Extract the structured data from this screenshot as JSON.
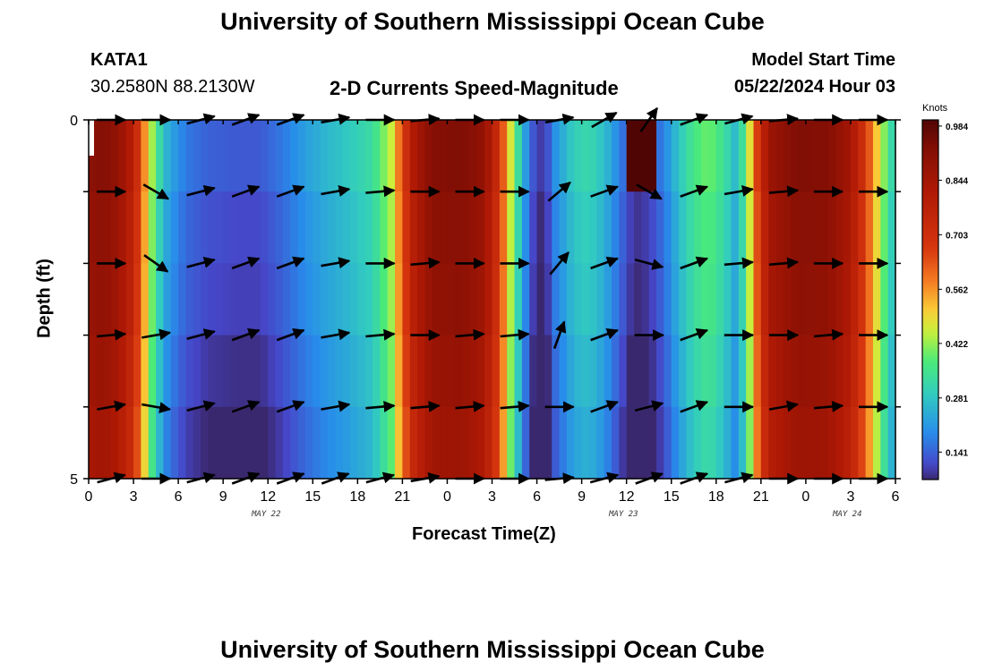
{
  "header": {
    "title": "University of Southern Mississippi Ocean Cube",
    "station_id": "KATA1",
    "coordinates": "30.2580N  88.2130W",
    "product": "2-D Currents Speed-Magnitude",
    "model_start_label": "Model Start Time",
    "model_start_value": "05/22/2024 Hour 03"
  },
  "footer": {
    "title": "University of Southern Mississippi Ocean Cube"
  },
  "chart_data": {
    "type": "heatmap",
    "title": "2-D Currents Speed-Magnitude",
    "xlabel": "Forecast Time(Z)",
    "ylabel": "Depth (ft)",
    "x_start_hour": 0,
    "x_end_hour": 54,
    "x_ticks": [
      0,
      3,
      6,
      9,
      12,
      15,
      18,
      21,
      24,
      27,
      30,
      33,
      36,
      39,
      42,
      45,
      48,
      51,
      54
    ],
    "x_tick_labels": [
      "0",
      "3",
      "6",
      "9",
      "12",
      "15",
      "18",
      "21",
      "0",
      "3",
      "6",
      "9",
      "12",
      "15",
      "18",
      "21",
      "0",
      "3",
      "6"
    ],
    "day_labels": [
      {
        "hour": 12,
        "label": "MAY 22"
      },
      {
        "hour": 36,
        "label": "MAY 23"
      },
      {
        "hour": 51,
        "label": "MAY 24"
      }
    ],
    "y_ticks": [
      0,
      1,
      2,
      3,
      4,
      5
    ],
    "y_tick_labels": [
      "0",
      "",
      "",
      "",
      "",
      "5"
    ],
    "ylim": [
      0,
      5
    ],
    "depth_bins": 5,
    "colorbar": {
      "label": "Knots",
      "min": 0.07,
      "max": 1.0,
      "ticks": [
        0.984,
        0.844,
        0.703,
        0.562,
        0.422,
        0.281,
        0.141
      ],
      "tick_labels": [
        "0.984",
        "0.844",
        "0.703",
        "0.562",
        "0.422",
        "0.281",
        "0.141"
      ]
    },
    "speed_profile": [
      {
        "h": 0,
        "v": 0.9
      },
      {
        "h": 1,
        "v": 0.92
      },
      {
        "h": 2,
        "v": 0.88
      },
      {
        "h": 3,
        "v": 0.78
      },
      {
        "h": 3.8,
        "v": 0.55
      },
      {
        "h": 4.5,
        "v": 0.36
      },
      {
        "h": 5.3,
        "v": 0.24
      },
      {
        "h": 6.5,
        "v": 0.17
      },
      {
        "h": 8,
        "v": 0.14
      },
      {
        "h": 10,
        "v": 0.13
      },
      {
        "h": 11.5,
        "v": 0.13
      },
      {
        "h": 13,
        "v": 0.17
      },
      {
        "h": 14.5,
        "v": 0.22
      },
      {
        "h": 16,
        "v": 0.26
      },
      {
        "h": 17.5,
        "v": 0.29
      },
      {
        "h": 19,
        "v": 0.33
      },
      {
        "h": 20.3,
        "v": 0.46
      },
      {
        "h": 21,
        "v": 0.66
      },
      {
        "h": 21.8,
        "v": 0.82
      },
      {
        "h": 23,
        "v": 0.92
      },
      {
        "h": 25,
        "v": 0.93
      },
      {
        "h": 26.5,
        "v": 0.88
      },
      {
        "h": 27.5,
        "v": 0.7
      },
      {
        "h": 28.2,
        "v": 0.48
      },
      {
        "h": 28.8,
        "v": 0.32
      },
      {
        "h": 29.4,
        "v": 0.18
      },
      {
        "h": 30,
        "v": 0.09
      },
      {
        "h": 30.6,
        "v": 0.1
      },
      {
        "h": 31.2,
        "v": 0.2
      },
      {
        "h": 32.5,
        "v": 0.3
      },
      {
        "h": 33.5,
        "v": 0.32
      },
      {
        "h": 34.5,
        "v": 0.27
      },
      {
        "h": 35.5,
        "v": 0.18
      },
      {
        "h": 36.5,
        "v": 0.1
      },
      {
        "h": 37.5,
        "v": 0.12
      },
      {
        "h": 38.5,
        "v": 0.18
      },
      {
        "h": 39.5,
        "v": 0.28
      },
      {
        "h": 40.5,
        "v": 0.36
      },
      {
        "h": 41.5,
        "v": 0.4
      },
      {
        "h": 42.5,
        "v": 0.34
      },
      {
        "h": 43.3,
        "v": 0.26
      },
      {
        "h": 44,
        "v": 0.38
      },
      {
        "h": 44.6,
        "v": 0.62
      },
      {
        "h": 45.5,
        "v": 0.86
      },
      {
        "h": 47.5,
        "v": 0.93
      },
      {
        "h": 49.5,
        "v": 0.92
      },
      {
        "h": 51,
        "v": 0.84
      },
      {
        "h": 52,
        "v": 0.68
      },
      {
        "h": 52.8,
        "v": 0.5
      },
      {
        "h": 53.5,
        "v": 0.36
      },
      {
        "h": 54,
        "v": 0.28
      }
    ],
    "depth_adjust": [
      0.0,
      -0.02,
      -0.03,
      -0.05,
      -0.07
    ],
    "surface_dark_spot": {
      "hour_start": 35.8,
      "hour_end": 37.8,
      "value": 1.0
    },
    "vector_hours": [
      1.5,
      4.5,
      7.5,
      10.5,
      13.5,
      16.5,
      19.5,
      22.5,
      25.5,
      28.5,
      31.5,
      34.5,
      37.5,
      40.5,
      43.5,
      46.5,
      49.5,
      52.5
    ],
    "vector_angles_deg": [
      [
        180,
        180,
        195,
        200,
        200,
        190,
        180,
        185,
        180,
        180,
        190,
        210,
        235,
        200,
        195,
        185,
        180,
        180
      ],
      [
        180,
        150,
        195,
        200,
        200,
        190,
        185,
        180,
        180,
        180,
        220,
        200,
        150,
        200,
        190,
        185,
        180,
        180
      ],
      [
        180,
        145,
        195,
        200,
        200,
        190,
        180,
        185,
        180,
        180,
        230,
        200,
        165,
        200,
        185,
        185,
        180,
        180
      ],
      [
        185,
        190,
        195,
        200,
        200,
        190,
        185,
        180,
        185,
        185,
        250,
        200,
        180,
        200,
        180,
        180,
        185,
        180
      ],
      [
        190,
        170,
        195,
        200,
        200,
        190,
        185,
        185,
        185,
        185,
        180,
        200,
        195,
        200,
        180,
        190,
        185,
        180
      ],
      [
        195,
        180,
        195,
        200,
        200,
        200,
        195,
        190,
        180,
        180,
        185,
        195,
        200,
        200,
        195,
        180,
        180,
        180
      ]
    ]
  }
}
